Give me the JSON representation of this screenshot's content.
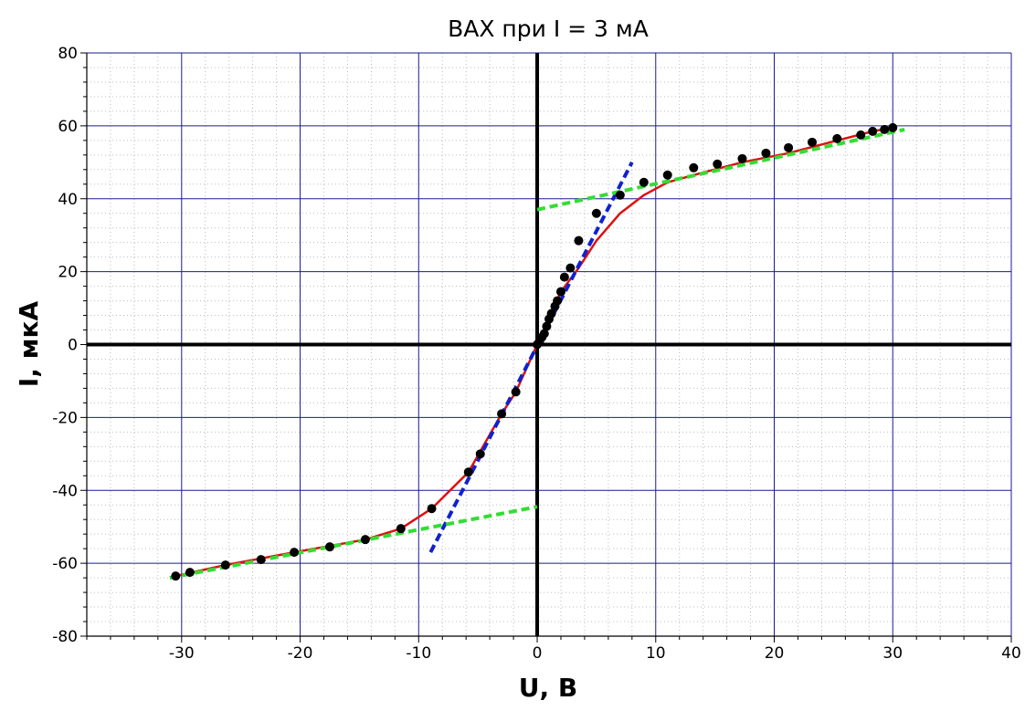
{
  "chart_data": {
    "type": "scatter",
    "title": "ВАХ при I = 3 мА",
    "xlabel": "U, В",
    "ylabel": "I, мкА",
    "xlim": [
      -38,
      40
    ],
    "ylim": [
      -80,
      80
    ],
    "x_ticks": [
      -30,
      -20,
      -10,
      0,
      10,
      20,
      30,
      40
    ],
    "y_ticks": [
      -80,
      -60,
      -40,
      -20,
      0,
      20,
      40,
      60,
      80
    ],
    "x_tick_labels": [
      "-30",
      "-20",
      "-10",
      "0",
      "10",
      "20",
      "30",
      "40"
    ],
    "y_tick_labels": [
      "-80",
      "-60",
      "-40",
      "-20",
      "0",
      "20",
      "40",
      "60",
      "80"
    ],
    "grid": true,
    "colors": {
      "points": "#000000",
      "curve": "#dd1111",
      "tangent_center": "#1122cc",
      "asymptotes": "#33dd33",
      "grid_major": "#1a1a9a",
      "grid_minor": "#bdbdbd"
    },
    "series": [
      {
        "kind": "points",
        "x": [
          -30.5,
          -29.3,
          -26.3,
          -23.3,
          -20.5,
          -17.5,
          -14.5,
          -11.5,
          -8.9,
          -5.8,
          -4.8,
          -3.0,
          -1.8,
          0.0,
          0.2,
          0.4,
          0.6,
          0.8,
          1.0,
          1.2,
          1.5,
          1.7,
          2.0,
          2.3,
          2.8,
          3.5,
          5.0,
          7.0,
          9.0,
          11.0,
          13.2,
          15.2,
          17.3,
          19.3,
          21.2,
          23.2,
          25.3,
          27.3,
          28.3,
          29.3,
          30.0
        ],
        "y": [
          -63.5,
          -62.5,
          -60.5,
          -59.0,
          -57.0,
          -55.5,
          -53.5,
          -50.5,
          -45.0,
          -35.0,
          -30.0,
          -19.0,
          -13.0,
          0.0,
          1.0,
          2.0,
          3.0,
          5.0,
          7.0,
          8.5,
          10.5,
          12.0,
          14.5,
          18.5,
          21.0,
          28.5,
          36.0,
          41.0,
          44.5,
          46.5,
          48.5,
          49.5,
          51.0,
          52.5,
          54.0,
          55.5,
          56.5,
          57.5,
          58.5,
          59.0,
          59.5
        ]
      },
      {
        "kind": "curve",
        "x": [
          -30.5,
          -26.3,
          -20.5,
          -14.5,
          -11.5,
          -8.9,
          -5.8,
          -3.0,
          -1.8,
          0.0,
          1.0,
          2.0,
          3.5,
          5.0,
          7.0,
          9.0,
          11.0,
          13.2,
          17.3,
          21.2,
          25.3,
          28.3,
          30.0
        ],
        "y": [
          -63.5,
          -60.5,
          -57.0,
          -53.5,
          -50.5,
          -45.0,
          -35.0,
          -19.0,
          -13.0,
          0.0,
          7.0,
          14.5,
          21.0,
          28.5,
          36.0,
          41.0,
          44.5,
          46.5,
          50.0,
          52.5,
          56.0,
          58.5,
          59.5
        ]
      },
      {
        "kind": "dashed-line",
        "color_key": "tangent_center",
        "x": [
          -9.0,
          8.0
        ],
        "y": [
          -57.0,
          50.0
        ]
      },
      {
        "kind": "dashed-line",
        "color_key": "asymptotes",
        "x": [
          0.0,
          31.0
        ],
        "y": [
          37.0,
          59.0
        ]
      },
      {
        "kind": "dashed-line",
        "color_key": "asymptotes",
        "x": [
          -31.0,
          0.0
        ],
        "y": [
          -64.0,
          -44.5
        ]
      }
    ]
  }
}
